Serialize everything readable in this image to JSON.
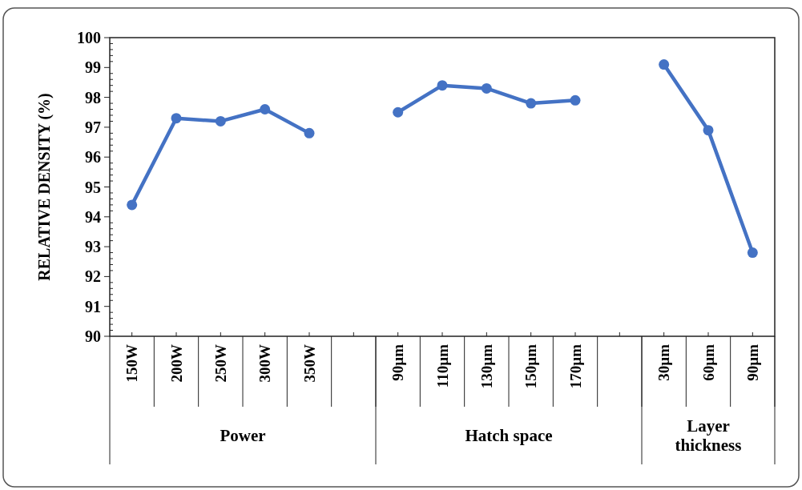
{
  "chart_data": {
    "type": "line",
    "ylabel": "RELATIVE DENSITY (%)",
    "categories": [
      "150W",
      "200W",
      "250W",
      "300W",
      "350W",
      null,
      "90µm",
      "110µm",
      "130µm",
      "150µm",
      "170µm",
      null,
      "30µm",
      "60µm",
      "90µm"
    ],
    "series": [
      {
        "color": "#4472c4",
        "values": [
          94.4,
          97.3,
          97.2,
          97.6,
          96.8,
          null,
          97.5,
          98.4,
          98.3,
          97.8,
          97.9,
          null,
          99.1,
          96.9,
          92.8
        ]
      }
    ],
    "annotations": [
      "Power",
      "Hatch space",
      "Layer thickness"
    ],
    "ylim": [
      90,
      100
    ],
    "yticks": [
      90,
      {
        "value": 90.2,
        "label": null
      },
      {
        "value": 90.4,
        "label": null
      },
      {
        "value": 90.6,
        "label": null
      },
      {
        "value": 90.8,
        "label": null
      },
      91,
      {
        "value": 91.2,
        "label": null
      },
      {
        "value": 91.4,
        "label": null
      },
      {
        "value": 91.6,
        "label": null
      },
      {
        "value": 91.8,
        "label": null
      },
      92,
      {
        "value": 92.2,
        "label": null
      },
      {
        "value": 92.4,
        "label": null
      },
      {
        "value": 92.6,
        "label": null
      },
      {
        "value": 92.8,
        "label": null
      },
      93,
      {
        "value": 93.2,
        "label": null
      },
      {
        "value": 93.4,
        "label": null
      },
      {
        "value": 93.6,
        "label": null
      },
      {
        "value": 93.8,
        "label": null
      },
      94,
      {
        "value": 94.2,
        "label": null
      },
      {
        "value": 94.4,
        "label": null
      },
      {
        "value": 94.6,
        "label": null
      },
      {
        "value": 94.8,
        "label": null
      },
      95,
      {
        "value": 95.2,
        "label": null
      },
      {
        "value": 95.4,
        "label": null
      },
      {
        "value": 95.6,
        "label": null
      },
      {
        "value": 95.8,
        "label": null
      },
      96,
      {
        "value": 96.2,
        "label": null
      },
      {
        "value": 96.4,
        "label": null
      },
      {
        "value": 96.6,
        "label": null
      },
      {
        "value": 96.8,
        "label": null
      },
      97,
      {
        "value": 97.2,
        "label": null
      },
      {
        "value": 97.4,
        "label": null
      },
      {
        "value": 97.6,
        "label": null
      },
      {
        "value": 97.8,
        "label": null
      },
      98,
      {
        "value": 98.2,
        "label": null
      },
      {
        "value": 98.4,
        "label": null
      },
      {
        "value": 98.6,
        "label": null
      },
      {
        "value": 98.8,
        "label": null
      },
      99,
      {
        "value": 99.2,
        "label": null
      },
      {
        "value": 99.4,
        "label": null
      },
      {
        "value": 99.6,
        "label": null
      },
      {
        "value": 99.8,
        "label": null
      },
      100
    ],
    "grid": false,
    "marker": "circle",
    "line_style": "solid"
  }
}
